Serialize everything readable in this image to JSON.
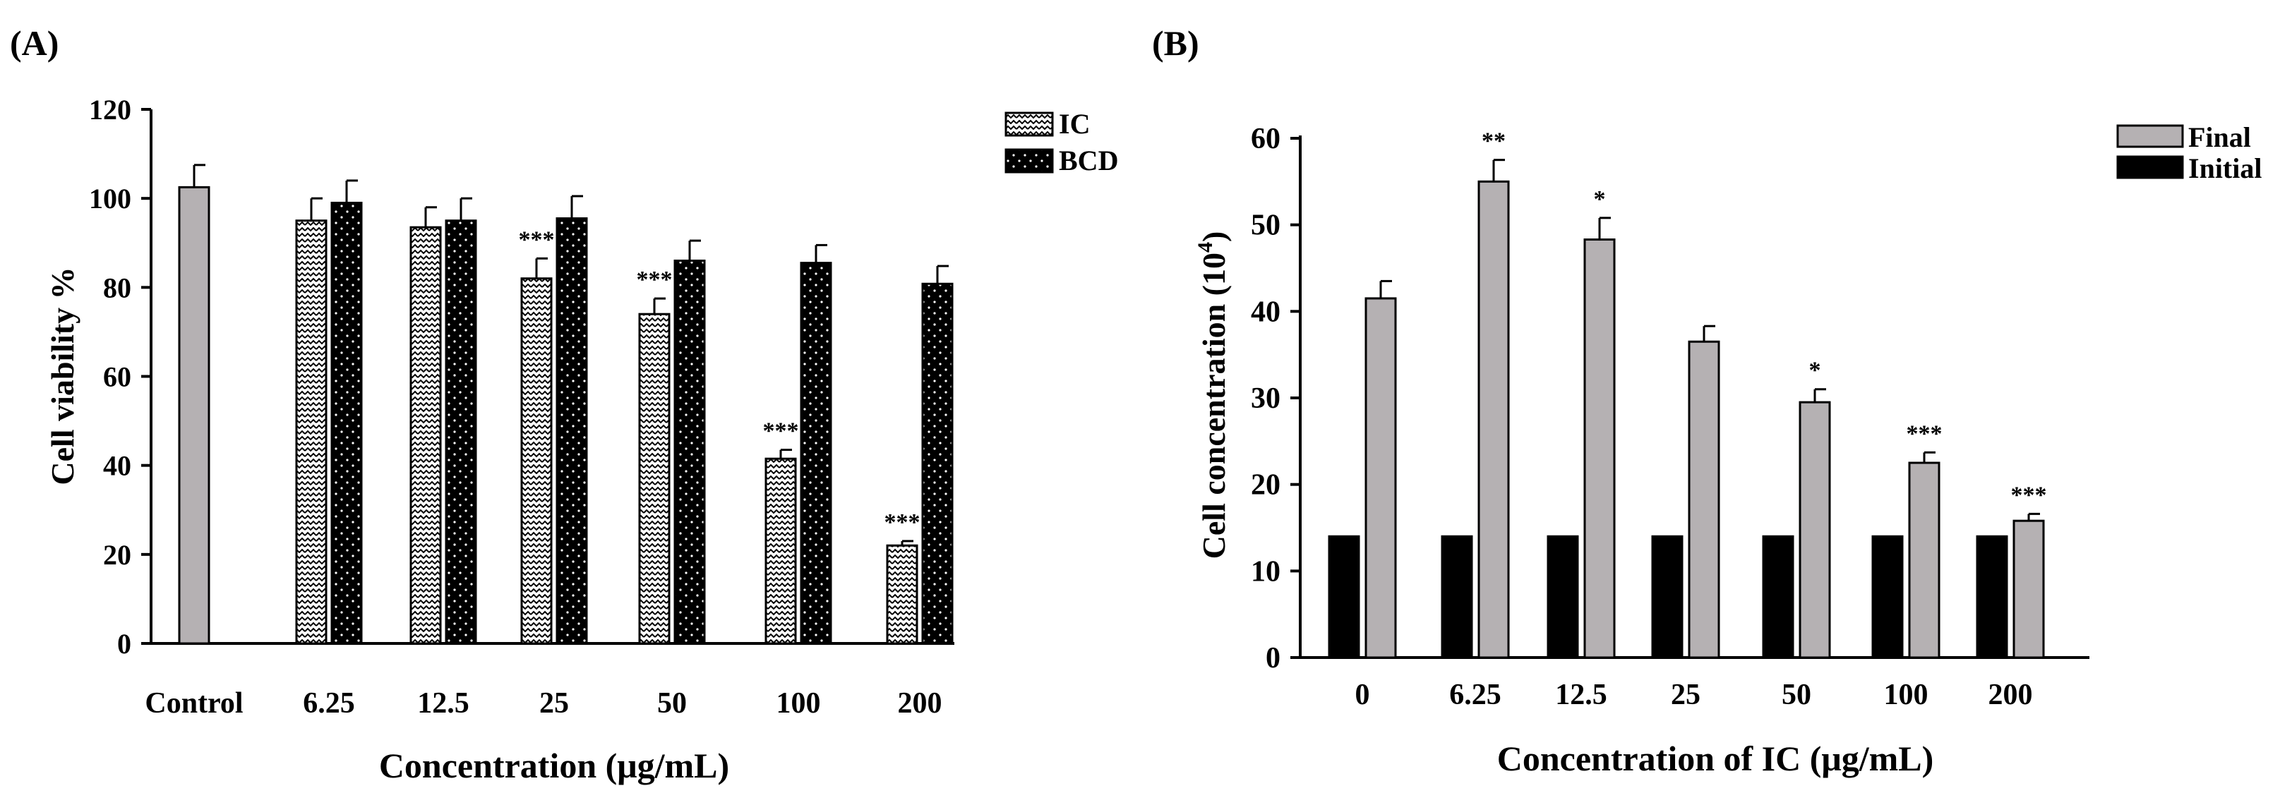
{
  "figure": {
    "colors": {
      "gray_bar": "#b5b1b3",
      "black_bar": "#000000",
      "ic_pattern_bg": "#ffffff",
      "ink": "#000000"
    },
    "panel_a": {
      "label": "(A)",
      "chart_data": {
        "type": "bar",
        "categories": [
          "Control",
          "6.25",
          "12.5",
          "25",
          "50",
          "100",
          "200"
        ],
        "series": [
          {
            "name": "Control",
            "values": [
              102.5,
              null,
              null,
              null,
              null,
              null,
              null
            ],
            "errors": [
              5,
              null,
              null,
              null,
              null,
              null,
              null
            ]
          },
          {
            "name": "IC",
            "values": [
              null,
              95,
              93.5,
              82,
              74,
              41.5,
              22
            ],
            "errors": [
              null,
              5,
              4.5,
              4.5,
              3.5,
              2,
              1
            ]
          },
          {
            "name": "BCD",
            "values": [
              null,
              99,
              95,
              95.5,
              86,
              85.5,
              80.8
            ],
            "errors": [
              null,
              5,
              5,
              5,
              4.5,
              4,
              4
            ]
          }
        ],
        "significance": [
          {
            "series": "IC",
            "category": "25",
            "text": "***"
          },
          {
            "series": "IC",
            "category": "50",
            "text": "***"
          },
          {
            "series": "IC",
            "category": "100",
            "text": "***"
          },
          {
            "series": "IC",
            "category": "200",
            "text": "***"
          }
        ],
        "legend": [
          "IC",
          "BCD"
        ],
        "legend_position": "top-right",
        "xlabel": "Concentration (μg/mL)",
        "ylabel": "Cell viability  %",
        "ylim": [
          0,
          120
        ],
        "yticks": [
          0,
          20,
          40,
          60,
          80,
          100,
          120
        ],
        "grid": false
      }
    },
    "panel_b": {
      "label": "(B)",
      "chart_data": {
        "type": "bar",
        "categories": [
          "0",
          "6.25",
          "12.5",
          "25",
          "50",
          "100",
          "200"
        ],
        "series": [
          {
            "name": "Initial",
            "values": [
              14,
              14,
              14,
              14,
              14,
              14,
              14
            ]
          },
          {
            "name": "Final",
            "values": [
              41.5,
              55,
              48.3,
              36.5,
              29.5,
              22.5,
              15.8
            ],
            "errors": [
              2,
              2.5,
              2.5,
              1.8,
              1.5,
              1.2,
              0.8
            ]
          }
        ],
        "significance": [
          {
            "series": "Final",
            "category": "6.25",
            "text": "**"
          },
          {
            "series": "Final",
            "category": "12.5",
            "text": "*"
          },
          {
            "series": "Final",
            "category": "50",
            "text": "*"
          },
          {
            "series": "Final",
            "category": "100",
            "text": "***"
          },
          {
            "series": "Final",
            "category": "200",
            "text": "***"
          }
        ],
        "legend": [
          "Final",
          "Initial"
        ],
        "legend_position": "top-right",
        "xlabel": "Concentration of IC (μg/mL)",
        "ylabel": "Cell concentration (10",
        "ylabel_exponent": "4",
        "ylabel_suffix": ")",
        "ylim": [
          0,
          60
        ],
        "yticks": [
          0,
          10,
          20,
          30,
          40,
          50,
          60
        ],
        "grid": false
      }
    }
  }
}
